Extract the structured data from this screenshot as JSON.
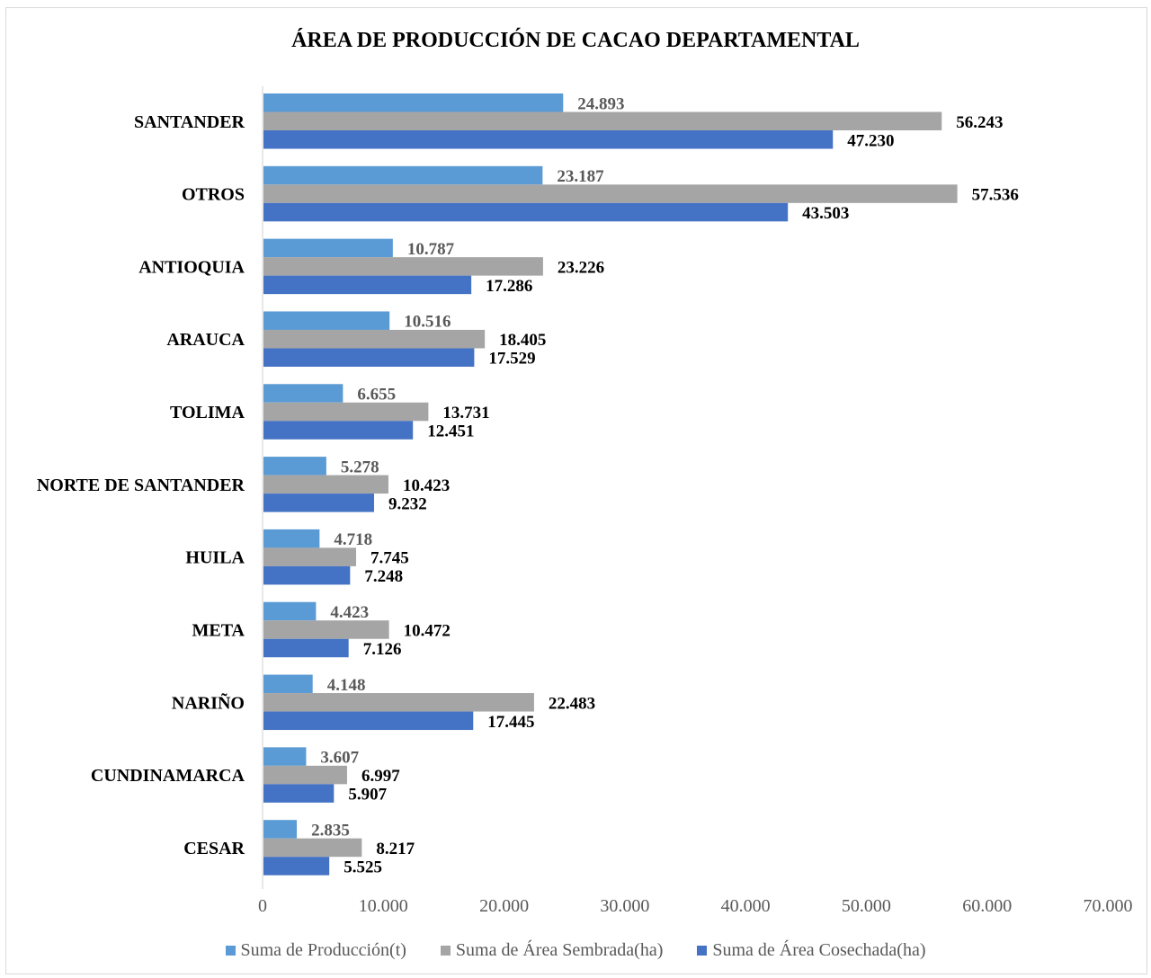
{
  "chart_data": {
    "type": "bar",
    "orientation": "horizontal",
    "title": "ÁREA DE PRODUCCIÓN DE CACAO DEPARTAMENTAL",
    "categories": [
      "SANTANDER",
      "OTROS",
      "ANTIOQUIA",
      "ARAUCA",
      "TOLIMA",
      "NORTE DE SANTANDER",
      "HUILA",
      "META",
      "NARIÑO",
      "CUNDINAMARCA",
      "CESAR"
    ],
    "series": [
      {
        "name": "Suma de Producción(t)",
        "color": "#5b9bd5",
        "label_color": "#595959",
        "values": [
          24893,
          23187,
          10787,
          10516,
          6655,
          5278,
          4718,
          4423,
          4148,
          3607,
          2835
        ],
        "labels": [
          "24.893",
          "23.187",
          "10.787",
          "10.516",
          "6.655",
          "5.278",
          "4.718",
          "4.423",
          "4.148",
          "3.607",
          "2.835"
        ]
      },
      {
        "name": "Suma de Área Sembrada(ha)",
        "color": "#a5a5a5",
        "label_color": "#000000",
        "values": [
          56243,
          57536,
          23226,
          18405,
          13731,
          10423,
          7745,
          10472,
          22483,
          6997,
          8217
        ],
        "labels": [
          "56.243",
          "57.536",
          "23.226",
          "18.405",
          "13.731",
          "10.423",
          "7.745",
          "10.472",
          "22.483",
          "6.997",
          "8.217"
        ]
      },
      {
        "name": "Suma de Área Cosechada(ha)",
        "color": "#4472c4",
        "label_color": "#000000",
        "values": [
          47230,
          43503,
          17286,
          17529,
          12451,
          9232,
          7248,
          7126,
          17445,
          5907,
          5525
        ],
        "labels": [
          "47.230",
          "43.503",
          "17.286",
          "17.529",
          "12.451",
          "9.232",
          "7.248",
          "7.126",
          "17.445",
          "5.907",
          "5.525"
        ]
      }
    ],
    "xlim": [
      0,
      70000
    ],
    "xticks": [
      0,
      10000,
      20000,
      30000,
      40000,
      50000,
      60000,
      70000
    ],
    "xtick_labels": [
      "0",
      "10.000",
      "20.000",
      "30.000",
      "40.000",
      "50.000",
      "60.000",
      "70.000"
    ],
    "grid": false,
    "legend_position": "bottom"
  }
}
